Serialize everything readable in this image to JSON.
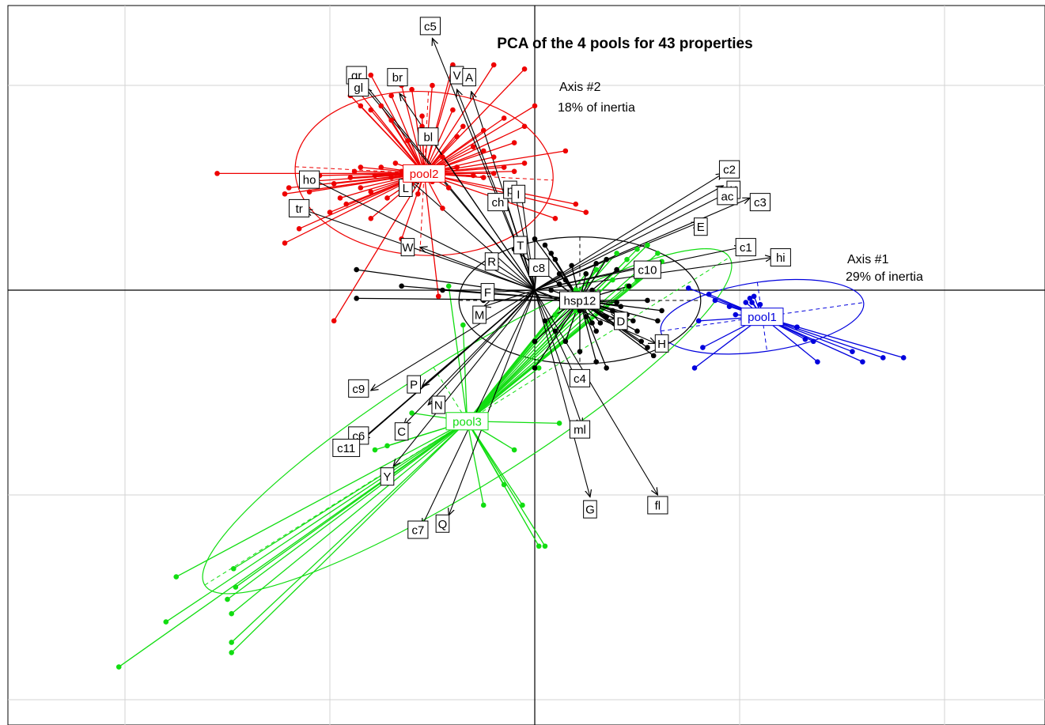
{
  "chart_data": {
    "type": "scatter",
    "title": "PCA of the 4 pools for 43  properties",
    "axis1": {
      "name": "Axis #1",
      "inertia": "29% of inertia"
    },
    "axis2": {
      "name": "Axis #2",
      "inertia": "18% of inertia"
    },
    "grid": true,
    "xlim": [
      -2.6,
      2.6
    ],
    "ylim": [
      -2.1,
      1.4
    ],
    "colors": {
      "pool1": "#0000dd",
      "pool2": "#ee0000",
      "pool3": "#11dd11",
      "hsp12": "#000000",
      "grid": "#d3d3d3",
      "axis": "#000000"
    },
    "groups": [
      {
        "name": "pool1",
        "color": "#0000dd",
        "centroid": [
          1.11,
          -0.13
        ],
        "ellipse": {
          "rx": 0.5,
          "ry": 0.17,
          "angle": -8
        },
        "points": [
          [
            0.75,
            0.01
          ],
          [
            0.8,
            -0.15
          ],
          [
            0.85,
            -0.02
          ],
          [
            0.78,
            -0.38
          ],
          [
            0.82,
            -0.28
          ],
          [
            0.88,
            -0.05
          ],
          [
            0.95,
            -0.08
          ],
          [
            0.98,
            -0.12
          ],
          [
            1.02,
            -0.1
          ],
          [
            1.03,
            -0.06
          ],
          [
            1.05,
            -0.04
          ],
          [
            1.06,
            -0.06
          ],
          [
            1.07,
            -0.03
          ],
          [
            1.1,
            -0.07
          ],
          [
            1.28,
            -0.18
          ],
          [
            1.32,
            -0.24
          ],
          [
            1.36,
            -0.25
          ],
          [
            1.38,
            -0.35
          ],
          [
            1.55,
            -0.3
          ],
          [
            1.6,
            -0.35
          ],
          [
            1.7,
            -0.33
          ],
          [
            1.8,
            -0.33
          ]
        ]
      },
      {
        "name": "pool2",
        "color": "#ee0000",
        "centroid": [
          -0.54,
          0.57
        ],
        "ellipse": {
          "rx": 0.63,
          "ry": 0.4,
          "angle": 3
        },
        "points": [
          [
            -1.55,
            0.57
          ],
          [
            -1.22,
            0.47
          ],
          [
            -1.2,
            0.5
          ],
          [
            -1.12,
            0.53
          ],
          [
            -1.1,
            0.48
          ],
          [
            -1.05,
            0.56
          ],
          [
            -0.98,
            0.52
          ],
          [
            -0.95,
            0.45
          ],
          [
            -0.92,
            0.42
          ],
          [
            -0.9,
            0.55
          ],
          [
            -0.88,
            0.58
          ],
          [
            -0.85,
            0.6
          ],
          [
            -0.85,
            0.5
          ],
          [
            -0.8,
            0.48
          ],
          [
            -0.78,
            0.56
          ],
          [
            -0.75,
            0.6
          ],
          [
            -0.72,
            0.45
          ],
          [
            -0.7,
            0.55
          ],
          [
            -0.68,
            0.62
          ],
          [
            -0.65,
            0.58
          ],
          [
            -0.6,
            0.52
          ],
          [
            -0.57,
            0.47
          ],
          [
            -0.5,
            0.53
          ],
          [
            -0.45,
            0.58
          ],
          [
            -0.42,
            0.5
          ],
          [
            -0.38,
            0.6
          ],
          [
            -0.3,
            0.56
          ],
          [
            -0.25,
            0.55
          ],
          [
            -0.2,
            0.57
          ],
          [
            -0.15,
            0.6
          ],
          [
            -0.1,
            0.58
          ],
          [
            -0.05,
            0.62
          ],
          [
            0.1,
            0.35
          ],
          [
            0.15,
            0.68
          ],
          [
            -1.22,
            0.23
          ],
          [
            -1.15,
            0.3
          ],
          [
            -1.0,
            0.38
          ],
          [
            -0.98,
            -0.15
          ],
          [
            -0.8,
            0.35
          ],
          [
            -0.65,
            0.25
          ],
          [
            -0.45,
            0.4
          ],
          [
            -0.45,
            0.65
          ],
          [
            -0.38,
            0.75
          ],
          [
            -0.3,
            0.7
          ],
          [
            -0.25,
            0.68
          ],
          [
            -0.2,
            0.65
          ],
          [
            -0.1,
            0.72
          ],
          [
            -0.05,
            0.8
          ],
          [
            0.0,
            0.9
          ],
          [
            -0.5,
            1.0
          ],
          [
            -0.6,
            0.98
          ],
          [
            -0.65,
            1.0
          ],
          [
            -0.7,
            0.95
          ],
          [
            -0.75,
            0.9
          ],
          [
            -0.8,
            0.88
          ],
          [
            -0.85,
            0.9
          ],
          [
            -0.9,
            0.95
          ],
          [
            -0.9,
            1.02
          ],
          [
            -0.8,
            1.05
          ],
          [
            -0.4,
            1.05
          ],
          [
            -0.4,
            1.1
          ],
          [
            -0.2,
            1.1
          ],
          [
            -0.05,
            1.08
          ],
          [
            -0.4,
            0.88
          ],
          [
            -0.55,
            0.85
          ],
          [
            -0.7,
            0.83
          ],
          [
            -0.35,
            0.8
          ],
          [
            -0.15,
            0.84
          ],
          [
            -0.25,
            0.78
          ],
          [
            0.2,
            0.42
          ],
          [
            0.25,
            0.38
          ],
          [
            -0.47,
            -0.03
          ],
          [
            -0.62,
            0.73
          ],
          [
            -0.55,
            0.8
          ]
        ]
      },
      {
        "name": "pool3",
        "color": "#11dd11",
        "centroid": [
          -0.33,
          -0.64
        ],
        "ellipse": {
          "rx": 1.51,
          "ry": 0.31,
          "angle": -32
        },
        "points": [
          [
            -2.03,
            -1.84
          ],
          [
            -1.8,
            -1.62
          ],
          [
            -1.75,
            -1.4
          ],
          [
            -1.5,
            -1.51
          ],
          [
            -1.48,
            -1.58
          ],
          [
            -1.48,
            -1.72
          ],
          [
            -1.48,
            -1.77
          ],
          [
            -1.47,
            -1.36
          ],
          [
            -1.46,
            -1.45
          ],
          [
            -0.42,
            0.02
          ],
          [
            -0.35,
            -0.17
          ],
          [
            -0.25,
            -1.05
          ],
          [
            -0.15,
            -0.95
          ],
          [
            -0.1,
            -0.78
          ],
          [
            -0.06,
            -1.05
          ],
          [
            0.02,
            -1.25
          ],
          [
            0.02,
            -0.38
          ],
          [
            0.05,
            -1.25
          ],
          [
            0.12,
            -0.65
          ],
          [
            -0.72,
            -0.76
          ],
          [
            -0.78,
            -0.78
          ],
          [
            -0.6,
            -0.6
          ],
          [
            0.2,
            0.0
          ],
          [
            0.25,
            0.08
          ],
          [
            0.3,
            0.1
          ],
          [
            0.35,
            0.15
          ],
          [
            0.4,
            0.18
          ],
          [
            0.45,
            0.15
          ],
          [
            0.5,
            0.2
          ],
          [
            0.55,
            0.22
          ],
          [
            0.58,
            0.1
          ],
          [
            0.6,
            0.18
          ],
          [
            0.62,
            0.14
          ],
          [
            0.5,
            0.05
          ],
          [
            0.45,
            0.02
          ],
          [
            0.38,
            0.05
          ],
          [
            0.3,
            -0.05
          ],
          [
            0.25,
            -0.02
          ],
          [
            0.2,
            -0.1
          ],
          [
            0.15,
            -0.05
          ],
          [
            0.1,
            -0.12
          ]
        ]
      },
      {
        "name": "hsp12",
        "color": "#000000",
        "centroid": [
          0.22,
          -0.05
        ],
        "ellipse": {
          "rx": 0.59,
          "ry": 0.31,
          "angle": 0
        },
        "points": [
          [
            -0.87,
            0.1
          ],
          [
            -0.87,
            -0.04
          ],
          [
            -0.65,
            0.02
          ],
          [
            -0.45,
            0.0
          ],
          [
            -0.25,
            -0.05
          ],
          [
            -0.1,
            0.2
          ],
          [
            0.0,
            0.25
          ],
          [
            0.05,
            0.22
          ],
          [
            0.08,
            0.18
          ],
          [
            0.1,
            0.15
          ],
          [
            0.12,
            0.08
          ],
          [
            0.15,
            0.05
          ],
          [
            0.18,
            -0.02
          ],
          [
            0.2,
            -0.06
          ],
          [
            0.22,
            -0.1
          ],
          [
            0.25,
            -0.13
          ],
          [
            0.28,
            -0.16
          ],
          [
            0.3,
            -0.2
          ],
          [
            0.32,
            -0.16
          ],
          [
            0.35,
            -0.13
          ],
          [
            0.38,
            -0.1
          ],
          [
            0.4,
            -0.06
          ],
          [
            0.42,
            -0.08
          ],
          [
            0.45,
            -0.12
          ],
          [
            0.48,
            -0.15
          ],
          [
            0.5,
            -0.2
          ],
          [
            0.52,
            -0.25
          ],
          [
            0.55,
            -0.28
          ],
          [
            0.58,
            -0.32
          ],
          [
            0.6,
            -0.15
          ],
          [
            0.62,
            -0.1
          ],
          [
            0.35,
            -0.38
          ],
          [
            0.3,
            -0.35
          ],
          [
            0.22,
            -0.3
          ],
          [
            0.15,
            -0.25
          ],
          [
            0.1,
            -0.2
          ],
          [
            0.05,
            -0.15
          ],
          [
            0.0,
            -0.38
          ],
          [
            0.3,
            0.13
          ],
          [
            0.35,
            0.15
          ],
          [
            0.4,
            0.1
          ],
          [
            0.25,
            0.08
          ],
          [
            0.18,
            0.12
          ],
          [
            0.12,
            0.03
          ],
          [
            0.0,
            -0.25
          ],
          [
            0.08,
            0.0
          ],
          [
            0.28,
            0.0
          ],
          [
            0.46,
            0.02
          ],
          [
            0.55,
            -0.05
          ]
        ]
      }
    ],
    "variables": [
      {
        "label": "c5",
        "x": -0.5,
        "y": 1.23,
        "lx": -0.51,
        "ly": 1.29
      },
      {
        "label": "gr",
        "x": -0.85,
        "y": 1.03,
        "lx": -0.87,
        "ly": 1.05
      },
      {
        "label": "gl",
        "x": -0.83,
        "y": 0.99,
        "lx": -0.86,
        "ly": 0.99
      },
      {
        "label": "br",
        "x": -0.66,
        "y": 0.96,
        "lx": -0.67,
        "ly": 1.04
      },
      {
        "label": "V",
        "x": -0.38,
        "y": 0.98,
        "lx": -0.38,
        "ly": 1.05
      },
      {
        "label": "A",
        "x": -0.31,
        "y": 0.97,
        "lx": -0.32,
        "ly": 1.04
      },
      {
        "label": "bl",
        "x": -0.52,
        "y": 0.76,
        "lx": -0.52,
        "ly": 0.75
      },
      {
        "label": "ho",
        "x": -1.12,
        "y": 0.56,
        "lx": -1.1,
        "ly": 0.54
      },
      {
        "label": "L",
        "x": -0.6,
        "y": 0.53,
        "lx": -0.63,
        "ly": 0.5
      },
      {
        "label": "tr",
        "x": -1.12,
        "y": 0.39,
        "lx": -1.15,
        "ly": 0.4
      },
      {
        "label": "W",
        "x": -0.56,
        "y": 0.21,
        "lx": -0.62,
        "ly": 0.21
      },
      {
        "label": "R",
        "x": -0.21,
        "y": 0.14,
        "lx": -0.21,
        "ly": 0.14
      },
      {
        "label": "ch",
        "x": -0.15,
        "y": 0.46,
        "lx": -0.18,
        "ly": 0.43
      },
      {
        "label": "p",
        "x": -0.1,
        "y": 0.49,
        "lx": -0.12,
        "ly": 0.49
      },
      {
        "label": "I",
        "x": -0.07,
        "y": 0.5,
        "lx": -0.08,
        "ly": 0.47
      },
      {
        "label": "T",
        "x": -0.07,
        "y": 0.23,
        "lx": -0.07,
        "ly": 0.22
      },
      {
        "label": "c8",
        "x": 0.01,
        "y": 0.11,
        "lx": 0.02,
        "ly": 0.11
      },
      {
        "label": "F",
        "x": -0.23,
        "y": -0.01,
        "lx": -0.23,
        "ly": -0.01
      },
      {
        "label": "M",
        "x": -0.25,
        "y": -0.08,
        "lx": -0.27,
        "ly": -0.12
      },
      {
        "label": "c2",
        "x": 0.92,
        "y": 0.57,
        "lx": 0.95,
        "ly": 0.59
      },
      {
        "label": "K",
        "x": 0.92,
        "y": 0.51,
        "lx": 0.97,
        "ly": 0.49
      },
      {
        "label": "ac",
        "x": 0.95,
        "y": 0.48,
        "lx": 0.94,
        "ly": 0.46
      },
      {
        "label": "c3",
        "x": 1.05,
        "y": 0.45,
        "lx": 1.1,
        "ly": 0.43
      },
      {
        "label": "E",
        "x": 0.8,
        "y": 0.33,
        "lx": 0.81,
        "ly": 0.31
      },
      {
        "label": "c1",
        "x": 1.01,
        "y": 0.21,
        "lx": 1.03,
        "ly": 0.21
      },
      {
        "label": "hi",
        "x": 1.16,
        "y": 0.16,
        "lx": 1.2,
        "ly": 0.16
      },
      {
        "label": "c10",
        "x": 0.54,
        "y": 0.12,
        "lx": 0.55,
        "ly": 0.1
      },
      {
        "label": "hsp12",
        "x": 0.22,
        "y": -0.05,
        "lx": 0.22,
        "ly": -0.05
      },
      {
        "label": "D",
        "x": 0.4,
        "y": -0.14,
        "lx": 0.42,
        "ly": -0.15
      },
      {
        "label": "H",
        "x": 0.59,
        "y": -0.26,
        "lx": 0.62,
        "ly": -0.26
      },
      {
        "label": "c4",
        "x": 0.2,
        "y": -0.43,
        "lx": 0.22,
        "ly": -0.43
      },
      {
        "label": "ml",
        "x": 0.23,
        "y": -0.66,
        "lx": 0.22,
        "ly": -0.68
      },
      {
        "label": "G",
        "x": 0.27,
        "y": -1.01,
        "lx": 0.27,
        "ly": -1.07
      },
      {
        "label": "fl",
        "x": 0.6,
        "y": -1.0,
        "lx": 0.6,
        "ly": -1.05
      },
      {
        "label": "c9",
        "x": -0.8,
        "y": -0.49,
        "lx": -0.86,
        "ly": -0.48
      },
      {
        "label": "P",
        "x": -0.55,
        "y": -0.47,
        "lx": -0.59,
        "ly": -0.46
      },
      {
        "label": "N",
        "x": -0.52,
        "y": -0.56,
        "lx": -0.47,
        "ly": -0.56
      },
      {
        "label": "C",
        "x": -0.64,
        "y": -0.66,
        "lx": -0.65,
        "ly": -0.69
      },
      {
        "label": "c6",
        "x": -0.84,
        "y": -0.73,
        "lx": -0.86,
        "ly": -0.71
      },
      {
        "label": "c11",
        "x": -0.88,
        "y": -0.76,
        "lx": -0.92,
        "ly": -0.77
      },
      {
        "label": "Y",
        "x": -0.69,
        "y": -0.86,
        "lx": -0.72,
        "ly": -0.91
      },
      {
        "label": "c7",
        "x": -0.55,
        "y": -1.15,
        "lx": -0.57,
        "ly": -1.17
      },
      {
        "label": "Q",
        "x": -0.42,
        "y": -1.1,
        "lx": -0.45,
        "ly": -1.14
      }
    ]
  }
}
